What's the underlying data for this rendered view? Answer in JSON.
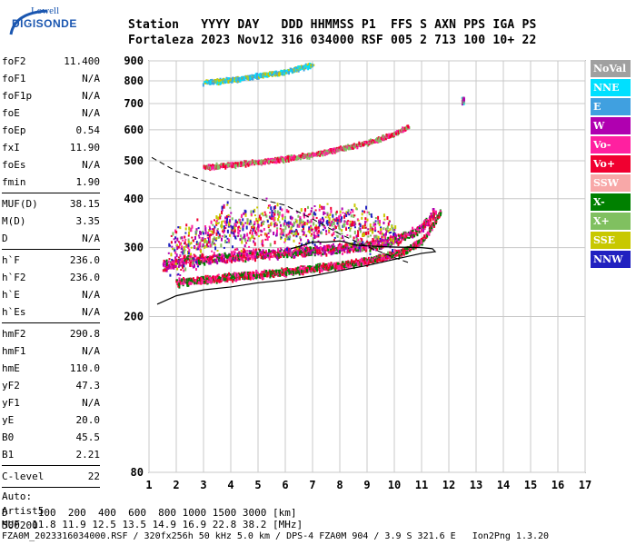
{
  "logo": {
    "line1": "Lowell",
    "line2": "DIGISONDE"
  },
  "header": {
    "labels": "Station   YYYY DAY   DDD HHMMSS P1  FFS S AXN PPS IGA PS",
    "values": "Fortaleza 2023 Nov12 316 034000 RSF 005 2 713 100 10+ 22"
  },
  "params": [
    {
      "k": "foF2",
      "v": "11.400"
    },
    {
      "k": "foF1",
      "v": "N/A"
    },
    {
      "k": "foF1p",
      "v": "N/A"
    },
    {
      "k": "foE",
      "v": "N/A"
    },
    {
      "k": "foEp",
      "v": "0.54"
    },
    {
      "k": "fxI",
      "v": "11.90"
    },
    {
      "k": "foEs",
      "v": "N/A"
    },
    {
      "k": "fmin",
      "v": "1.90"
    }
  ],
  "params2": [
    {
      "k": "MUF(D)",
      "v": "38.15"
    },
    {
      "k": "M(D)",
      "v": "3.35"
    },
    {
      "k": "D",
      "v": "N/A"
    }
  ],
  "params3": [
    {
      "k": "h`F",
      "v": "236.0"
    },
    {
      "k": "h`F2",
      "v": "236.0"
    },
    {
      "k": "h`E",
      "v": "N/A"
    },
    {
      "k": "h`Es",
      "v": "N/A"
    }
  ],
  "params4": [
    {
      "k": "hmF2",
      "v": "290.8"
    },
    {
      "k": "hmF1",
      "v": "N/A"
    },
    {
      "k": "hmE",
      "v": "110.0"
    },
    {
      "k": "yF2",
      "v": "47.3"
    },
    {
      "k": "yF1",
      "v": "N/A"
    },
    {
      "k": "yE",
      "v": "20.0"
    },
    {
      "k": "B0",
      "v": "45.5"
    },
    {
      "k": "B1",
      "v": "2.21"
    }
  ],
  "params5": [
    {
      "k": "C-level",
      "v": "22"
    }
  ],
  "auto": {
    "l1": "Auto:",
    "l2": "Artist5",
    "l3": "500200"
  },
  "legend": [
    {
      "label": "NoVal",
      "color": "#a0a0a0"
    },
    {
      "label": "NNE",
      "color": "#00e0ff"
    },
    {
      "label": "E",
      "color": "#40a0e0"
    },
    {
      "label": "W",
      "color": "#b000b0"
    },
    {
      "label": "Vo-",
      "color": "#ff20a0"
    },
    {
      "label": "Vo+",
      "color": "#f00030"
    },
    {
      "label": "SSW",
      "color": "#f8a8a8"
    },
    {
      "label": "X-",
      "color": "#008000"
    },
    {
      "label": "X+",
      "color": "#80c060"
    },
    {
      "label": "SSE",
      "color": "#c8c800"
    },
    {
      "label": "NNW",
      "color": "#2020c0"
    }
  ],
  "footer": {
    "d_line": "D     100  200  400  600  800 1000 1500 3000 [km]",
    "muf_line": "MUF  11.8 11.9 12.5 13.5 14.9 16.9 22.8 38.2 [MHz]",
    "file_line": "FZA0M_2023316034000.RSF / 320fx256h 50 kHz 5.0 km / DPS-4 FZA0M 904 / 3.9 S 321.6 E   Ion2Png 1.3.20"
  },
  "chart_data": {
    "type": "scatter",
    "xlim": [
      1,
      17
    ],
    "ylim": [
      80,
      900
    ],
    "y_scale": "log",
    "x_ticks": [
      "1",
      "2",
      "3",
      "4",
      "5",
      "6",
      "7",
      "8",
      "9",
      "10",
      "11",
      "12",
      "13",
      "14",
      "15",
      "16",
      "17"
    ],
    "y_ticks": [
      "80",
      "200",
      "300",
      "400",
      "500",
      "600",
      "700",
      "800",
      "900"
    ],
    "grid": true,
    "profile": [
      {
        "x": 1.3,
        "y": 215
      },
      {
        "x": 2,
        "y": 226
      },
      {
        "x": 3,
        "y": 234
      },
      {
        "x": 4,
        "y": 238
      },
      {
        "x": 5,
        "y": 244
      },
      {
        "x": 6,
        "y": 248
      },
      {
        "x": 7,
        "y": 254
      },
      {
        "x": 8,
        "y": 262
      },
      {
        "x": 9,
        "y": 270
      },
      {
        "x": 10,
        "y": 280
      },
      {
        "x": 11,
        "y": 290
      },
      {
        "x": 11.5,
        "y": 293
      },
      {
        "x": 11.4,
        "y": 298
      },
      {
        "x": 11,
        "y": 300
      },
      {
        "x": 10,
        "y": 301
      },
      {
        "x": 9,
        "y": 303
      },
      {
        "x": 8.5,
        "y": 305
      },
      {
        "x": 8.2,
        "y": 310
      },
      {
        "x": 8,
        "y": 312
      },
      {
        "x": 7.5,
        "y": 310
      },
      {
        "x": 7,
        "y": 310
      },
      {
        "x": 6.5,
        "y": 302
      },
      {
        "x": 6.2,
        "y": 298
      }
    ],
    "dashed_curve": [
      {
        "x": 1.1,
        "y": 510
      },
      {
        "x": 2,
        "y": 470
      },
      {
        "x": 3,
        "y": 445
      },
      {
        "x": 4,
        "y": 420
      },
      {
        "x": 5,
        "y": 400
      },
      {
        "x": 6,
        "y": 385
      },
      {
        "x": 7,
        "y": 355
      },
      {
        "x": 8,
        "y": 325
      },
      {
        "x": 9,
        "y": 302
      },
      {
        "x": 10,
        "y": 283
      },
      {
        "x": 10.5,
        "y": 275
      }
    ],
    "trace_groups": [
      {
        "name": "F2 O-trace",
        "color_idx": [
          5,
          3,
          4,
          7
        ],
        "pts": [
          [
            1.5,
            270
          ],
          [
            2,
            278
          ],
          [
            3,
            282
          ],
          [
            4,
            286
          ],
          [
            5,
            290
          ],
          [
            6,
            293
          ],
          [
            7,
            296
          ],
          [
            8,
            300
          ],
          [
            9,
            305
          ],
          [
            10,
            315
          ],
          [
            10.5,
            325
          ],
          [
            11,
            340
          ],
          [
            11.3,
            360
          ],
          [
            11.5,
            380
          ]
        ],
        "spread": [
          4,
          10
        ]
      },
      {
        "name": "F2 lower",
        "color_idx": [
          4,
          7,
          5
        ],
        "pts": [
          [
            2,
            246
          ],
          [
            3,
            250
          ],
          [
            4,
            254
          ],
          [
            5,
            258
          ],
          [
            6,
            262
          ],
          [
            7,
            268
          ],
          [
            8,
            272
          ],
          [
            9,
            280
          ],
          [
            10,
            290
          ],
          [
            10.5,
            300
          ],
          [
            11,
            315
          ],
          [
            11.4,
            345
          ],
          [
            11.7,
            375
          ]
        ],
        "spread": [
          3,
          6
        ]
      },
      {
        "name": "spread-F",
        "color_idx": [
          3,
          10,
          5,
          4,
          8,
          9
        ],
        "pts": [
          [
            1.7,
            290
          ],
          [
            2.5,
            310
          ],
          [
            3.2,
            320
          ],
          [
            3.8,
            350
          ],
          [
            4.2,
            330
          ],
          [
            5,
            345
          ],
          [
            5.5,
            360
          ],
          [
            6,
            340
          ],
          [
            6.5,
            330
          ],
          [
            7.5,
            350
          ],
          [
            8,
            345
          ],
          [
            8.3,
            340
          ],
          [
            9.2,
            335
          ],
          [
            10,
            320
          ]
        ],
        "spread": [
          12,
          55
        ]
      },
      {
        "name": "2nd hop",
        "color_idx": [
          5,
          8,
          4
        ],
        "pts": [
          [
            3,
            485
          ],
          [
            4,
            492
          ],
          [
            5,
            500
          ],
          [
            6,
            510
          ],
          [
            7,
            522
          ],
          [
            8,
            540
          ],
          [
            9,
            560
          ],
          [
            10,
            590
          ],
          [
            10.5,
            615
          ]
        ],
        "spread": [
          2,
          8
        ]
      },
      {
        "name": "upper",
        "color_idx": [
          2,
          9,
          1
        ],
        "pts": [
          [
            3,
            800
          ],
          [
            4,
            810
          ],
          [
            5,
            830
          ],
          [
            6,
            850
          ],
          [
            6.5,
            870
          ],
          [
            7,
            885
          ]
        ],
        "spread": [
          3,
          12
        ]
      },
      {
        "name": "isolated",
        "color_idx": [
          8,
          3,
          1
        ],
        "pts": [
          [
            12.5,
            705
          ],
          [
            12.5,
            720
          ],
          [
            12.5,
            730
          ]
        ],
        "spread": [
          1,
          3
        ]
      }
    ]
  }
}
